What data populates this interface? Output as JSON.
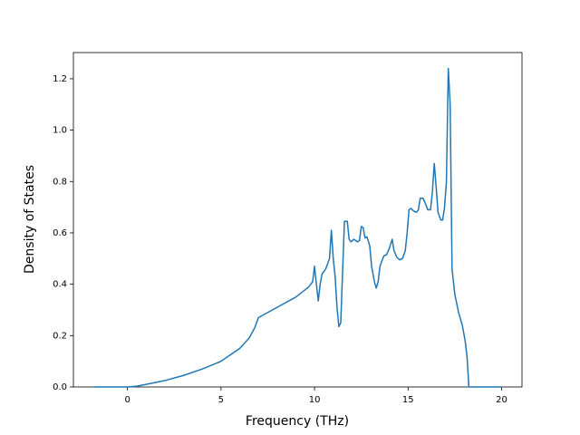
{
  "chart_data": {
    "type": "line",
    "xlabel": "Frequency (THz)",
    "ylabel": "Density of States",
    "x": [
      -1.8,
      0,
      0.5,
      1,
      2,
      3,
      4,
      5,
      6,
      6.5,
      6.8,
      7,
      8,
      9,
      9.7,
      9.9,
      10.0,
      10.1,
      10.2,
      10.3,
      10.4,
      10.6,
      10.8,
      10.9,
      11.0,
      11.1,
      11.2,
      11.3,
      11.4,
      11.5,
      11.6,
      11.75,
      11.85,
      11.95,
      12.1,
      12.3,
      12.4,
      12.5,
      12.6,
      12.7,
      12.8,
      12.95,
      13.05,
      13.2,
      13.3,
      13.4,
      13.5,
      13.7,
      13.85,
      14.0,
      14.15,
      14.25,
      14.4,
      14.55,
      14.7,
      14.85,
      14.95,
      15.05,
      15.15,
      15.3,
      15.45,
      15.55,
      15.65,
      15.8,
      15.95,
      16.05,
      16.2,
      16.3,
      16.4,
      16.5,
      16.6,
      16.75,
      16.85,
      16.95,
      17.05,
      17.15,
      17.25,
      17.35,
      17.5,
      17.7,
      17.9,
      18.05,
      18.15,
      18.25,
      20
    ],
    "series": [
      {
        "color": "#1f77b4",
        "values": [
          0,
          0,
          0.003,
          0.01,
          0.025,
          0.045,
          0.07,
          0.1,
          0.15,
          0.19,
          0.23,
          0.27,
          0.31,
          0.35,
          0.39,
          0.41,
          0.47,
          0.4,
          0.335,
          0.4,
          0.44,
          0.46,
          0.5,
          0.61,
          0.5,
          0.43,
          0.31,
          0.235,
          0.25,
          0.45,
          0.645,
          0.645,
          0.575,
          0.565,
          0.575,
          0.565,
          0.57,
          0.625,
          0.62,
          0.58,
          0.585,
          0.55,
          0.47,
          0.41,
          0.385,
          0.41,
          0.47,
          0.51,
          0.515,
          0.54,
          0.575,
          0.53,
          0.505,
          0.495,
          0.5,
          0.53,
          0.6,
          0.69,
          0.695,
          0.685,
          0.68,
          0.69,
          0.735,
          0.735,
          0.71,
          0.69,
          0.69,
          0.76,
          0.87,
          0.78,
          0.68,
          0.65,
          0.65,
          0.7,
          0.8,
          1.24,
          1.1,
          0.46,
          0.36,
          0.29,
          0.24,
          0.18,
          0.12,
          0,
          0
        ]
      }
    ],
    "xlim": [
      -2.89,
      21.09
    ],
    "ylim": [
      0,
      1.302
    ],
    "xticks": [
      0,
      5,
      10,
      15,
      20
    ],
    "yticks": [
      {
        "value": 0,
        "label": "0.0"
      },
      {
        "value": 0.2,
        "label": "0.2"
      },
      {
        "value": 0.4,
        "label": "0.4"
      },
      {
        "value": 0.6,
        "label": "0.6"
      },
      {
        "value": 0.8,
        "label": "0.8"
      },
      {
        "value": 1.0,
        "label": "1.0"
      },
      {
        "value": 1.2,
        "label": "1.2"
      }
    ],
    "grid": false
  }
}
